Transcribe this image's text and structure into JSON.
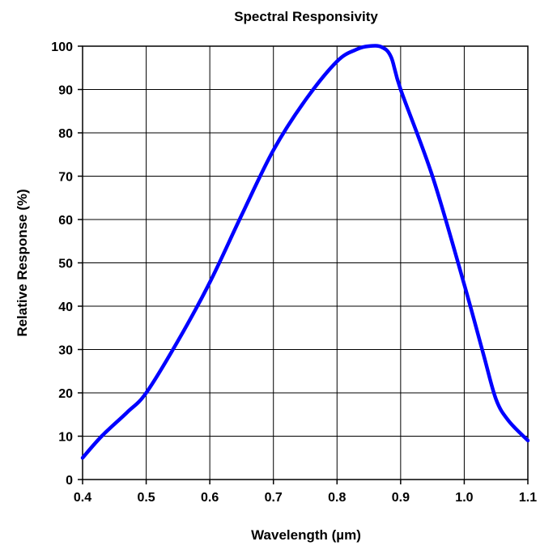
{
  "chart_data": {
    "type": "line",
    "title": "Spectral Responsivity",
    "xlabel": "Wavelength (µm)",
    "ylabel": "Relative Response (%)",
    "xlim": [
      0.4,
      1.1
    ],
    "ylim": [
      0,
      100
    ],
    "grid": true,
    "x_ticks": [
      "0.4",
      "0.5",
      "0.6",
      "0.7",
      "0.8",
      "0.9",
      "1.0",
      "1.1"
    ],
    "y_ticks": [
      "0",
      "10",
      "20",
      "30",
      "40",
      "50",
      "60",
      "70",
      "80",
      "90",
      "100"
    ],
    "series": [
      {
        "color": "#0000ff",
        "x": [
          0.4,
          0.43,
          0.47,
          0.5,
          0.55,
          0.6,
          0.65,
          0.7,
          0.75,
          0.8,
          0.83,
          0.85,
          0.87,
          0.885,
          0.9,
          0.95,
          1.0,
          1.03,
          1.05,
          1.07,
          1.1
        ],
        "y": [
          5,
          10,
          15.5,
          20,
          32,
          45.5,
          61,
          76,
          87.5,
          96.5,
          99.2,
          100,
          99.8,
          97.5,
          90,
          70,
          45,
          29,
          18.5,
          13.5,
          9
        ]
      }
    ]
  }
}
